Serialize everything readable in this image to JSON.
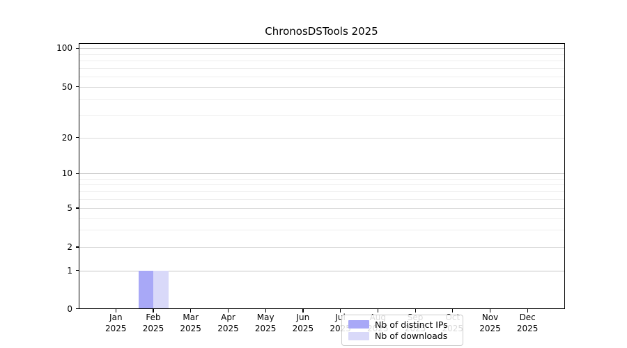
{
  "chart_data": {
    "type": "bar",
    "title": "ChronosDSTools 2025",
    "categories": [
      "Jan 2025",
      "Feb 2025",
      "Mar 2025",
      "Apr 2025",
      "May 2025",
      "Jun 2025",
      "Jul 2025",
      "Aug 2025",
      "Sep 2025",
      "Oct 2025",
      "Nov 2025",
      "Dec 2025"
    ],
    "x_tick_months": [
      "Jan",
      "Feb",
      "Mar",
      "Apr",
      "May",
      "Jun",
      "Jul",
      "Aug",
      "Sep",
      "Oct",
      "Nov",
      "Dec"
    ],
    "x_tick_year": "2025",
    "series": [
      {
        "name": "Nb of distinct IPs",
        "color": "#a8a8f7",
        "values": [
          0,
          1,
          0,
          0,
          0,
          0,
          0,
          0,
          0,
          0,
          0,
          0
        ]
      },
      {
        "name": "Nb of downloads",
        "color": "#d9d9f9",
        "values": [
          0,
          1,
          0,
          0,
          0,
          0,
          0,
          0,
          0,
          0,
          0,
          0
        ]
      }
    ],
    "y_tick_labels": [
      "100",
      "50",
      "20",
      "10",
      "5",
      "2",
      "1",
      "0"
    ],
    "y_tick_values": [
      100,
      50,
      20,
      10,
      5,
      2,
      1,
      0
    ],
    "ylim": [
      0,
      100
    ],
    "xlabel": "",
    "ylabel": "",
    "yscale": "piecewise-log",
    "grid": "horizontal major+minor",
    "legend_position": "lower center inside axes"
  },
  "colors": {
    "bar_distinct_ips": "#a8a8f7",
    "bar_downloads": "#d9d9f9",
    "grid_major_decade": "#c6c6c6",
    "grid_major_other": "#dadada",
    "grid_minor": "#ededed",
    "axis": "#000000",
    "legend_border": "#cccccc",
    "background": "#ffffff"
  }
}
